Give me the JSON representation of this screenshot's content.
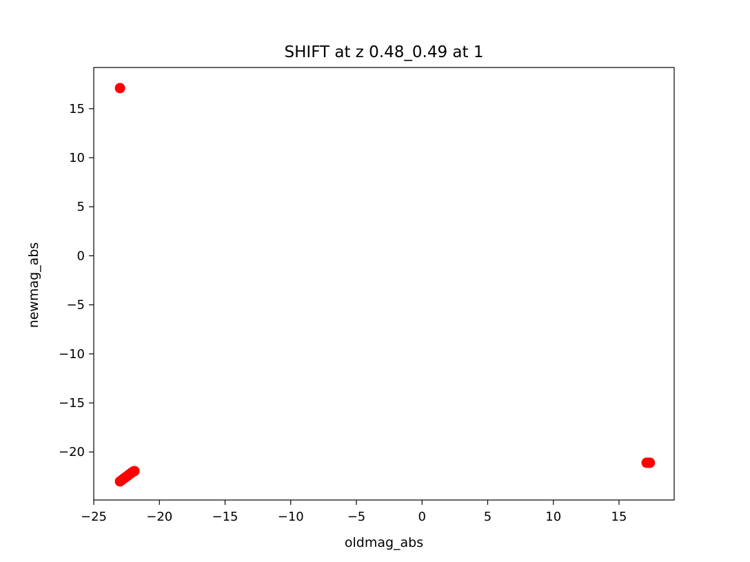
{
  "chart_data": {
    "type": "scatter",
    "title": "SHIFT at z 0.48_0.49 at 1",
    "xlabel": "oldmag_abs",
    "ylabel": "newmag_abs",
    "xlim": [
      -25,
      19.2
    ],
    "ylim": [
      -24.9,
      19.2
    ],
    "xticks": [
      -25,
      -20,
      -15,
      -10,
      -5,
      0,
      5,
      10,
      15
    ],
    "xtick_labels": [
      "−25",
      "−20",
      "−15",
      "−10",
      "−5",
      "0",
      "5",
      "10",
      "15"
    ],
    "yticks": [
      -20,
      -15,
      -10,
      -5,
      0,
      5,
      10,
      15
    ],
    "ytick_labels": [
      "−20",
      "−15",
      "−10",
      "−5",
      "0",
      "5",
      "10",
      "15"
    ],
    "grid": false,
    "marker_color": "#ff0000",
    "series": [
      {
        "points": [
          {
            "x": -23.0,
            "y": 17.1
          },
          {
            "x": -23.0,
            "y": -23.0
          },
          {
            "x": -22.85,
            "y": -22.85
          },
          {
            "x": -22.7,
            "y": -22.7
          },
          {
            "x": -22.55,
            "y": -22.55
          },
          {
            "x": -22.4,
            "y": -22.4
          },
          {
            "x": -22.3,
            "y": -22.3
          },
          {
            "x": -22.2,
            "y": -22.2
          },
          {
            "x": -22.1,
            "y": -22.1
          },
          {
            "x": -22.0,
            "y": -22.0
          },
          {
            "x": -21.9,
            "y": -21.95
          },
          {
            "x": 17.1,
            "y": -21.1
          },
          {
            "x": 17.25,
            "y": -21.1
          },
          {
            "x": 17.35,
            "y": -21.1
          }
        ]
      }
    ]
  }
}
